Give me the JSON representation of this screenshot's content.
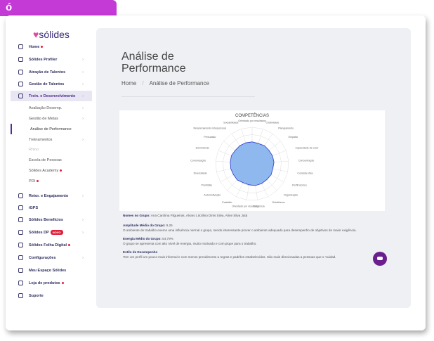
{
  "brand": {
    "tab_logo": "ó",
    "logo": "sólides"
  },
  "sidebar": {
    "items": [
      {
        "label": "Home",
        "dot": true
      },
      {
        "label": "Sólides Profiler",
        "chevron": true
      },
      {
        "label": "Atração de Talentos",
        "chevron": true
      },
      {
        "label": "Gestão de Talentos",
        "chevron": true
      },
      {
        "label": "Trein. e Desenvolvimento",
        "chevron": true,
        "open": true,
        "children": [
          {
            "label": "Avaliação Desemp.",
            "chevron": true
          },
          {
            "label": "Gestão de Metas",
            "chevron": true
          },
          {
            "label": "Análise de Performance",
            "active": true
          },
          {
            "label": "Treinamentos",
            "chevron": true
          },
          {
            "label": "Rhino",
            "muted": true
          },
          {
            "label": "Escola de Pessoas"
          },
          {
            "label": "Sólides Academy",
            "dot": true
          },
          {
            "label": "PDI",
            "dot": true
          }
        ]
      },
      {
        "label": "Retor. e Engajamento",
        "chevron": true
      },
      {
        "label": "iGPS"
      },
      {
        "label": "Sólides Benefícios",
        "chevron": true
      },
      {
        "label": "Sólides DP",
        "badge": "NOVO",
        "chevron": true
      },
      {
        "label": "Sólides Folha Digital",
        "dot": true
      },
      {
        "label": "Configurações",
        "chevron": true
      },
      {
        "label": "Meu Espaço Sólides"
      },
      {
        "label": "Loja de produtos",
        "dot": true
      },
      {
        "label": "Suporte"
      }
    ]
  },
  "header": {
    "title": "Análise de Performance",
    "breadcrumb": [
      "Home",
      "/",
      "Análise de Performance"
    ]
  },
  "chart": {
    "type": "radar",
    "title": "COMPETÊNCIAS",
    "color": "#2b3bd0",
    "fill": "#8fb8ee",
    "rlim": [
      0,
      10
    ],
    "categories": [
      "Orientado por resultados",
      "Criatividade",
      "Planejamento",
      "Empatia",
      "Capacidade de ouvir",
      "Concentração",
      "Conduta ética",
      "Perfil técnico",
      "Organização",
      "Detalhismo",
      "Exigência",
      "Orientado por resultado",
      "Exatidão",
      "Automotivação",
      "Prontidão",
      "Diversidade",
      "Comunicação",
      "Dominância",
      "Persuasão",
      "Relacionamento interpessoal",
      "Sociabilidade"
    ],
    "values": [
      6,
      5.8,
      6,
      5.9,
      6,
      6,
      5.8,
      6,
      5.9,
      6,
      6,
      5.8,
      5.7,
      6,
      5.9,
      6,
      6,
      6.1,
      5.9,
      6,
      6
    ]
  },
  "report": [
    {
      "label": "Nomes no Grupo:",
      "value": "Ana Carolina Filgueiras, Alvaro Linzilino Dinis Silva, Aline Silva Jatá"
    },
    {
      "label": "Amplitude Médio do Grupo:",
      "value": "9,25",
      "text": "O ambiente de trabalho exerce uma influência normal o grupo, sendo interessante prover o ambiente adequado para desempenho de objetivos de maior exigência."
    },
    {
      "label": "Energia Médio do Grupo:",
      "value": "54,79%",
      "text": "O grupo se apresenta com alto nível de energia, muito motivado e com pique para o trabalho."
    },
    {
      "label": "Estilo de Desempenho",
      "text": "Tem um perfil um pouco mais informal e com menos prendimento a regras e padrões estabelecidos. São mais direcionadas a pessoas que o 'cuidad."
    }
  ]
}
